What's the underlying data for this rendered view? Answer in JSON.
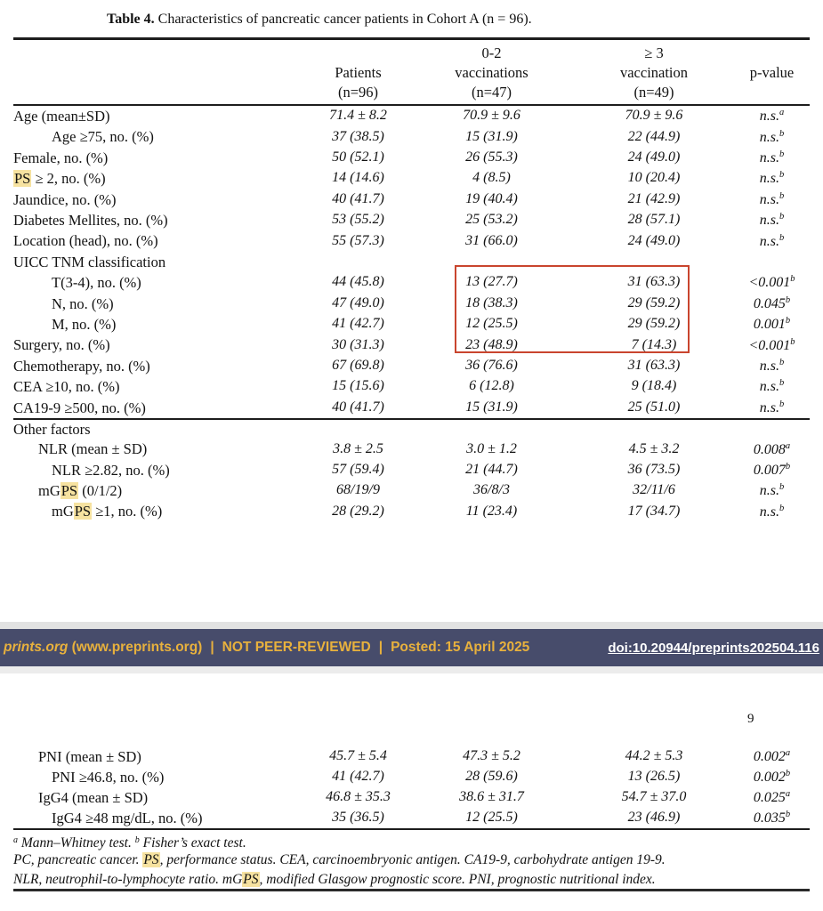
{
  "title": {
    "bold": "Table 4.",
    "text": " Characteristics of pancreatic cancer patients in Cohort A (n = 96)."
  },
  "page_number": "9",
  "colors": {
    "banner_bg": "#474c6b",
    "banner_gold": "#e8b13d",
    "highlight_yellow": "#f6e2a0",
    "red_box": "#c9452e"
  },
  "table1": {
    "header": [
      [
        "",
        "",
        ""
      ],
      [
        "",
        "Patients",
        "(n=96)"
      ],
      [
        "0-2",
        "vaccinations",
        "(n=47)"
      ],
      [
        "≥ 3",
        "vaccination",
        "(n=49)"
      ],
      [
        "",
        "p-value",
        ""
      ]
    ],
    "rows": [
      {
        "label": "Age (mean±SD)",
        "indent": 0,
        "values": [
          "71.4 ± 8.2",
          "70.9 ± 9.6",
          "70.9 ± 9.6"
        ],
        "p": "n.s.",
        "p_sup": "a"
      },
      {
        "label": "Age ≥75, no. (%)",
        "indent": 2,
        "values": [
          "37 (38.5)",
          "15 (31.9)",
          "22 (44.9)"
        ],
        "p": "n.s.",
        "p_sup": "b"
      },
      {
        "label": "Female, no. (%)",
        "indent": 0,
        "values": [
          "50 (52.1)",
          "26 (55.3)",
          "24 (49.0)"
        ],
        "p": "n.s.",
        "p_sup": "b"
      },
      {
        "label": "PS ≥ 2, no. (%)",
        "hl": "PS",
        "indent": 0,
        "values": [
          "14 (14.6)",
          "4 (8.5)",
          "10 (20.4)"
        ],
        "p": "n.s.",
        "p_sup": "b"
      },
      {
        "label": "Jaundice, no. (%)",
        "indent": 0,
        "values": [
          "40 (41.7)",
          "19 (40.4)",
          "21 (42.9)"
        ],
        "p": "n.s.",
        "p_sup": "b"
      },
      {
        "label": "Diabetes Mellites, no. (%)",
        "indent": 0,
        "values": [
          "53 (55.2)",
          "25 (53.2)",
          "28 (57.1)"
        ],
        "p": "n.s.",
        "p_sup": "b"
      },
      {
        "label": "Location (head), no. (%)",
        "indent": 0,
        "values": [
          "55 (57.3)",
          "31 (66.0)",
          "24 (49.0)"
        ],
        "p": "n.s.",
        "p_sup": "b"
      },
      {
        "label": "UICC TNM classification",
        "indent": 0,
        "values": [
          "",
          "",
          ""
        ],
        "p": "",
        "p_sup": ""
      },
      {
        "label": "T(3-4), no. (%)",
        "indent": 2,
        "values": [
          "44 (45.8)",
          "13 (27.7)",
          "31 (63.3)"
        ],
        "p": "<0.001",
        "p_sup": "b"
      },
      {
        "label": "N, no. (%)",
        "indent": 2,
        "values": [
          "47 (49.0)",
          "18 (38.3)",
          "29 (59.2)"
        ],
        "p": "0.045",
        "p_sup": "b"
      },
      {
        "label": "M, no. (%)",
        "indent": 2,
        "values": [
          "41 (42.7)",
          "12 (25.5)",
          "29 (59.2)"
        ],
        "p": "0.001",
        "p_sup": "b"
      },
      {
        "label": "Surgery, no. (%)",
        "indent": 0,
        "values": [
          "30 (31.3)",
          "23 (48.9)",
          "7 (14.3)"
        ],
        "p": "<0.001",
        "p_sup": "b"
      },
      {
        "label": "Chemotherapy, no. (%)",
        "indent": 0,
        "values": [
          "67 (69.8)",
          "36 (76.6)",
          "31 (63.3)"
        ],
        "p": "n.s.",
        "p_sup": "b"
      },
      {
        "label": "CEA ≥10, no. (%)",
        "indent": 0,
        "values": [
          "15 (15.6)",
          "6 (12.8)",
          "9 (18.4)"
        ],
        "p": "n.s.",
        "p_sup": "b"
      },
      {
        "label": "CA19-9 ≥500, no. (%)",
        "indent": 0,
        "values": [
          "40 (41.7)",
          "15 (31.9)",
          "25 (51.0)"
        ],
        "p": "n.s.",
        "p_sup": "b"
      },
      {
        "label": "Other factors",
        "indent": 0,
        "section_rule": true,
        "values": [
          "",
          "",
          ""
        ],
        "p": "",
        "p_sup": ""
      },
      {
        "label": "NLR (mean ± SD)",
        "indent": 1,
        "values": [
          "3.8 ± 2.5",
          "3.0 ± 1.2",
          "4.5 ± 3.2"
        ],
        "p": "0.008",
        "p_sup": "a"
      },
      {
        "label": "NLR ≥2.82, no. (%)",
        "indent": 2,
        "values": [
          "57 (59.4)",
          "21 (44.7)",
          "36 (73.5)"
        ],
        "p": "0.007",
        "p_sup": "b"
      },
      {
        "label": "mGPS (0/1/2)",
        "hl": "PS",
        "indent": 1,
        "values": [
          "68/19/9",
          "36/8/3",
          "32/11/6"
        ],
        "p": "n.s.",
        "p_sup": "b"
      },
      {
        "label": "mGPS ≥1, no. (%)",
        "hl": "PS",
        "indent": 2,
        "values": [
          "28 (29.2)",
          "11 (23.4)",
          "17 (34.7)"
        ],
        "p": "n.s.",
        "p_sup": "b"
      }
    ]
  },
  "table2": {
    "rows": [
      {
        "label": "PNI (mean ± SD)",
        "indent": 1,
        "values": [
          "45.7 ± 5.4",
          "47.3 ± 5.2",
          "44.2 ± 5.3"
        ],
        "p": "0.002",
        "p_sup": "a"
      },
      {
        "label": "PNI ≥46.8, no. (%)",
        "indent": 2,
        "values": [
          "41 (42.7)",
          "28 (59.6)",
          "13 (26.5)"
        ],
        "p": "0.002",
        "p_sup": "b"
      },
      {
        "label": "IgG4 (mean ± SD)",
        "indent": 1,
        "values": [
          "46.8 ± 35.3",
          "38.6 ± 31.7",
          "54.7 ± 37.0"
        ],
        "p": "0.025",
        "p_sup": "a"
      },
      {
        "label": "IgG4 ≥48 mg/dL, no. (%)",
        "indent": 2,
        "values": [
          "35 (36.5)",
          "12 (25.5)",
          "23 (46.9)"
        ],
        "p": "0.035",
        "p_sup": "b"
      }
    ]
  },
  "footnotes": {
    "lines": [
      [
        {
          "t": "a",
          "sup": true
        },
        {
          "t": " Mann–Whitney test. "
        },
        {
          "t": "b",
          "sup": true
        },
        {
          "t": " Fisher’s exact test."
        }
      ],
      [
        {
          "t": "PC, pancreatic cancer. "
        },
        {
          "t": "PS",
          "hl": true
        },
        {
          "t": ", performance status. CEA, carcinoembryonic antigen. CA19-9, carbohydrate antigen 19-9."
        }
      ],
      [
        {
          "t": "NLR, neutrophil-to-lymphocyte ratio. mG"
        },
        {
          "t": "PS",
          "hl": true
        },
        {
          "t": ", modified Glasgow prognostic score. PNI, prognostic nutritional index."
        }
      ]
    ]
  },
  "banner": {
    "site_italic": "prints.org",
    "site_rest": " (www.preprints.org)",
    "sep": "|",
    "not_peer_reviewed": "NOT PEER-REVIEWED",
    "posted": "Posted: 15 April 2025",
    "doi": "doi:10.20944/preprints202504.116"
  }
}
